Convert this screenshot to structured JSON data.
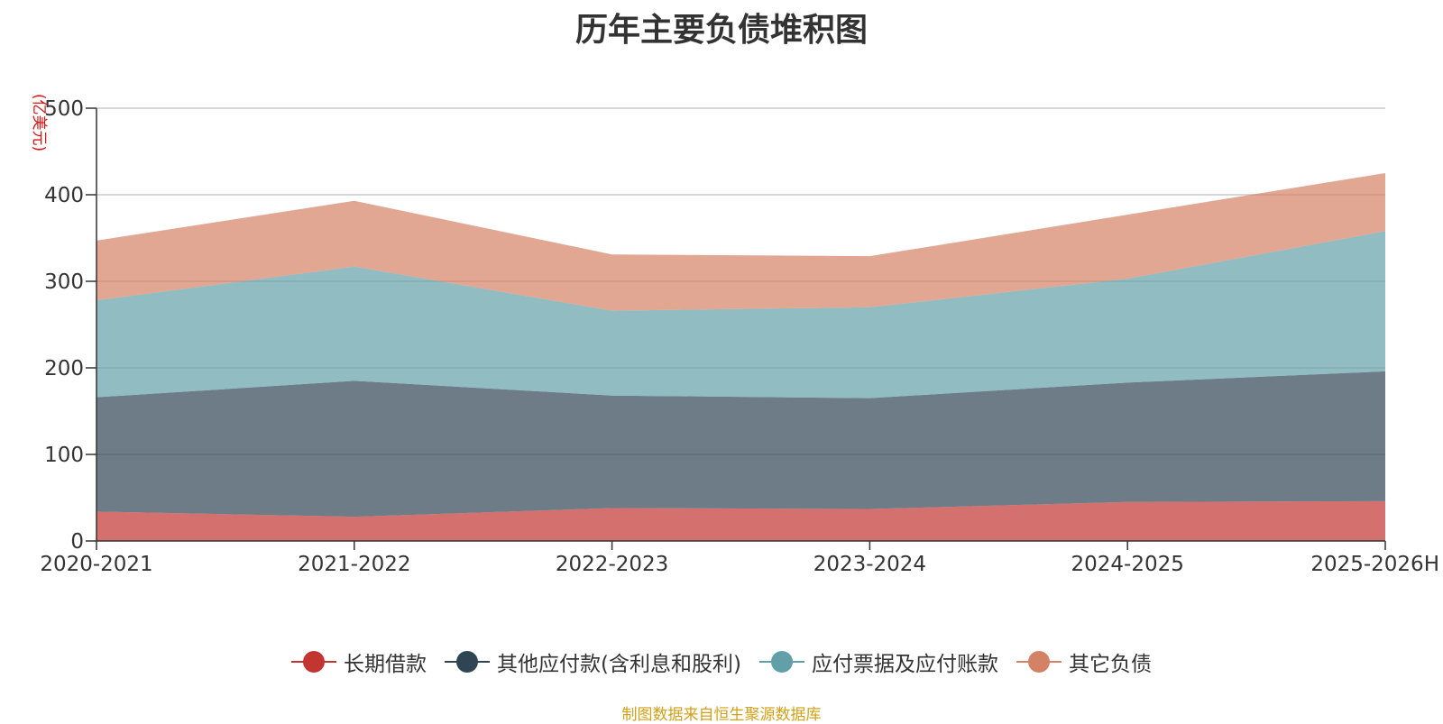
{
  "chart_data": {
    "type": "area",
    "stacked": true,
    "title": "历年主要负债堆积图",
    "ylabel": "(亿美元)",
    "xlabel": "",
    "categories": [
      "2020-2021",
      "2021-2022",
      "2022-2023",
      "2023-2024",
      "2024-2025",
      "2025-2026H"
    ],
    "ylim": [
      0,
      500
    ],
    "yticks": [
      "0",
      "100",
      "200",
      "300",
      "400",
      "500"
    ],
    "grid": true,
    "legend_position": "bottom",
    "series": [
      {
        "name": "长期借款",
        "color": "#c23531",
        "values": [
          34,
          28,
          38,
          37,
          45,
          46
        ]
      },
      {
        "name": "其他应付款(含利息和股利)",
        "color": "#2f4554",
        "values": [
          132,
          157,
          130,
          128,
          138,
          150
        ]
      },
      {
        "name": "应付票据及应付账款",
        "color": "#61a0a8",
        "values": [
          112,
          132,
          98,
          105,
          120,
          162
        ]
      },
      {
        "name": "其它负债",
        "color": "#d48265",
        "values": [
          69,
          76,
          65,
          59,
          74,
          67
        ]
      }
    ]
  },
  "source_note": "制图数据来自恒生聚源数据库"
}
